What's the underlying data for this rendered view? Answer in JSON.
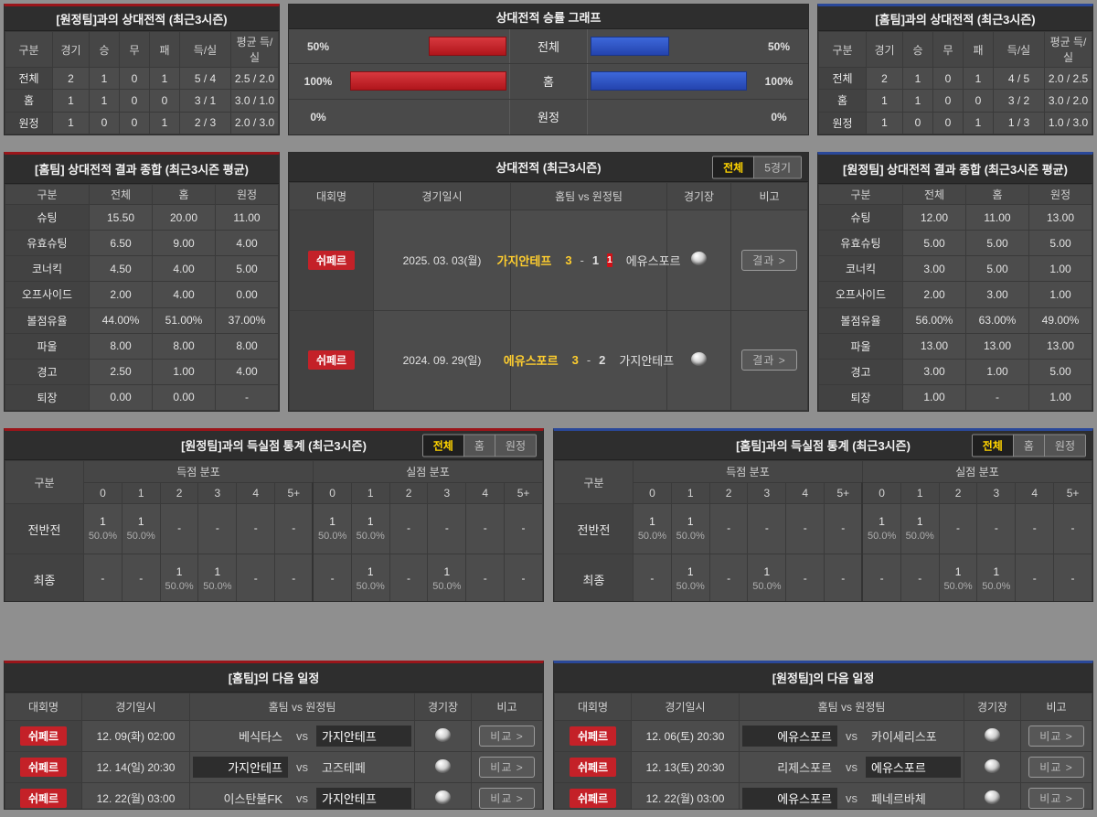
{
  "colors": {
    "red_accent": "#9a151a",
    "blue_accent": "#2a4899",
    "badge_red": "#c42128",
    "bar_red": "#c1272d",
    "bar_blue": "#2b50c8",
    "active_yellow": "#ffd400",
    "winner_yellow": "#ffce2e"
  },
  "top_left": {
    "title": "[원정팀]과의 상대전적 (최근3시즌)",
    "headers": [
      "구분",
      "경기",
      "승",
      "무",
      "패",
      "득/실",
      "평균 득/실"
    ],
    "rows": [
      [
        "전체",
        "2",
        "1",
        "0",
        "1",
        "5 / 4",
        "2.5 / 2.0"
      ],
      [
        "홈",
        "1",
        "1",
        "0",
        "0",
        "3 / 1",
        "3.0 / 1.0"
      ],
      [
        "원정",
        "1",
        "0",
        "0",
        "1",
        "2 / 3",
        "2.0 / 3.0"
      ]
    ]
  },
  "graph": {
    "title": "상대전적 승률 그래프",
    "rows": [
      {
        "left_label": "50%",
        "left_bar": "50%",
        "label": "전체",
        "right_bar": "50%",
        "right_label": "50%"
      },
      {
        "left_label": "100%",
        "left_bar": "100%",
        "label": "홈",
        "right_bar": "100%",
        "right_label": "100%"
      },
      {
        "left_label": "0%",
        "left_bar": "0%",
        "label": "원정",
        "right_bar": "0%",
        "right_label": "0%"
      }
    ]
  },
  "top_right": {
    "title": "[홈팀]과의 상대전적 (최근3시즌)",
    "headers": [
      "구분",
      "경기",
      "승",
      "무",
      "패",
      "득/실",
      "평균 득/실"
    ],
    "rows": [
      [
        "전체",
        "2",
        "1",
        "0",
        "1",
        "4 / 5",
        "2.0 / 2.5"
      ],
      [
        "홈",
        "1",
        "1",
        "0",
        "0",
        "3 / 2",
        "3.0 / 2.0"
      ],
      [
        "원정",
        "1",
        "0",
        "0",
        "1",
        "1 / 3",
        "1.0 / 3.0"
      ]
    ]
  },
  "summary_home": {
    "title": "[홈팀] 상대전적 결과 종합 (최근3시즌 평균)",
    "headers": [
      "구분",
      "전체",
      "홈",
      "원정"
    ],
    "rows": [
      [
        "슈팅",
        "15.50",
        "20.00",
        "11.00"
      ],
      [
        "유효슈팅",
        "6.50",
        "9.00",
        "4.00"
      ],
      [
        "코너킥",
        "4.50",
        "4.00",
        "5.00"
      ],
      [
        "오프사이드",
        "2.00",
        "4.00",
        "0.00"
      ],
      [
        "볼점유율",
        "44.00%",
        "51.00%",
        "37.00%"
      ],
      [
        "파울",
        "8.00",
        "8.00",
        "8.00"
      ],
      [
        "경고",
        "2.50",
        "1.00",
        "4.00"
      ],
      [
        "퇴장",
        "0.00",
        "0.00",
        "-"
      ]
    ]
  },
  "h2h": {
    "title": "상대전적 (최근3시즌)",
    "toggles": [
      {
        "label": "전체",
        "active": true
      },
      {
        "label": "5경기",
        "active": false
      }
    ],
    "headers": [
      "대회명",
      "경기일시",
      "홈팀 vs 원정팀",
      "경기장",
      "비고"
    ],
    "rows": [
      {
        "league": "쉬페르",
        "date": "2025. 03. 03(월)",
        "home": "가지안테프",
        "home_win": true,
        "home_score": "3",
        "dash": "-",
        "away_score": "1",
        "redcard": "1",
        "away": "에유스포르",
        "away_win": false,
        "btn": "결과 >"
      },
      {
        "league": "쉬페르",
        "date": "2024. 09. 29(일)",
        "home": "에유스포르",
        "home_win": true,
        "home_score": "3",
        "dash": "-",
        "away_score": "2",
        "away": "가지안테프",
        "away_win": false,
        "btn": "결과 >"
      }
    ]
  },
  "summary_away": {
    "title": "[원정팀] 상대전적 결과 종합 (최근3시즌 평균)",
    "headers": [
      "구분",
      "전체",
      "홈",
      "원정"
    ],
    "rows": [
      [
        "슈팅",
        "12.00",
        "11.00",
        "13.00"
      ],
      [
        "유효슈팅",
        "5.00",
        "5.00",
        "5.00"
      ],
      [
        "코너킥",
        "3.00",
        "5.00",
        "1.00"
      ],
      [
        "오프사이드",
        "2.00",
        "3.00",
        "1.00"
      ],
      [
        "볼점유율",
        "56.00%",
        "63.00%",
        "49.00%"
      ],
      [
        "파울",
        "13.00",
        "13.00",
        "13.00"
      ],
      [
        "경고",
        "3.00",
        "1.00",
        "5.00"
      ],
      [
        "퇴장",
        "1.00",
        "-",
        "1.00"
      ]
    ]
  },
  "dist_left": {
    "title": "[원정팀]과의 득실점 통계 (최근3시즌)",
    "toggles": [
      {
        "label": "전체",
        "active": true
      },
      {
        "label": "홈",
        "active": false
      },
      {
        "label": "원정",
        "active": false
      }
    ],
    "col_label": "구분",
    "groups": [
      "득점 분포",
      "실점 분포"
    ],
    "nums12": [
      "0",
      "1",
      "2",
      "3",
      "4",
      "5+",
      "0",
      "1",
      "2",
      "3",
      "4",
      "5+"
    ],
    "rows": [
      {
        "label": "전반전",
        "cells": [
          {
            "top": "1",
            "bottom": "50.0%"
          },
          {
            "top": "1",
            "bottom": "50.0%"
          },
          {
            "top": "-",
            "bottom": ""
          },
          {
            "top": "-",
            "bottom": ""
          },
          {
            "top": "-",
            "bottom": ""
          },
          {
            "top": "-",
            "bottom": ""
          },
          {
            "top": "1",
            "bottom": "50.0%"
          },
          {
            "top": "1",
            "bottom": "50.0%"
          },
          {
            "top": "-",
            "bottom": ""
          },
          {
            "top": "-",
            "bottom": ""
          },
          {
            "top": "-",
            "bottom": ""
          },
          {
            "top": "-",
            "bottom": ""
          }
        ]
      },
      {
        "label": "최종",
        "cells": [
          {
            "top": "-",
            "bottom": ""
          },
          {
            "top": "-",
            "bottom": ""
          },
          {
            "top": "1",
            "bottom": "50.0%"
          },
          {
            "top": "1",
            "bottom": "50.0%"
          },
          {
            "top": "-",
            "bottom": ""
          },
          {
            "top": "-",
            "bottom": ""
          },
          {
            "top": "-",
            "bottom": ""
          },
          {
            "top": "1",
            "bottom": "50.0%"
          },
          {
            "top": "-",
            "bottom": ""
          },
          {
            "top": "1",
            "bottom": "50.0%"
          },
          {
            "top": "-",
            "bottom": ""
          },
          {
            "top": "-",
            "bottom": ""
          }
        ]
      }
    ]
  },
  "dist_right": {
    "title": "[홈팀]과의 득실점 통계 (최근3시즌)",
    "toggles": [
      {
        "label": "전체",
        "active": true
      },
      {
        "label": "홈",
        "active": false
      },
      {
        "label": "원정",
        "active": false
      }
    ],
    "col_label": "구분",
    "groups": [
      "득점 분포",
      "실점 분포"
    ],
    "nums12": [
      "0",
      "1",
      "2",
      "3",
      "4",
      "5+",
      "0",
      "1",
      "2",
      "3",
      "4",
      "5+"
    ],
    "rows": [
      {
        "label": "전반전",
        "cells": [
          {
            "top": "1",
            "bottom": "50.0%"
          },
          {
            "top": "1",
            "bottom": "50.0%"
          },
          {
            "top": "-",
            "bottom": ""
          },
          {
            "top": "-",
            "bottom": ""
          },
          {
            "top": "-",
            "bottom": ""
          },
          {
            "top": "-",
            "bottom": ""
          },
          {
            "top": "1",
            "bottom": "50.0%"
          },
          {
            "top": "1",
            "bottom": "50.0%"
          },
          {
            "top": "-",
            "bottom": ""
          },
          {
            "top": "-",
            "bottom": ""
          },
          {
            "top": "-",
            "bottom": ""
          },
          {
            "top": "-",
            "bottom": ""
          }
        ]
      },
      {
        "label": "최종",
        "cells": [
          {
            "top": "-",
            "bottom": ""
          },
          {
            "top": "1",
            "bottom": "50.0%"
          },
          {
            "top": "-",
            "bottom": ""
          },
          {
            "top": "1",
            "bottom": "50.0%"
          },
          {
            "top": "-",
            "bottom": ""
          },
          {
            "top": "-",
            "bottom": ""
          },
          {
            "top": "-",
            "bottom": ""
          },
          {
            "top": "-",
            "bottom": ""
          },
          {
            "top": "1",
            "bottom": "50.0%"
          },
          {
            "top": "1",
            "bottom": "50.0%"
          },
          {
            "top": "-",
            "bottom": ""
          },
          {
            "top": "-",
            "bottom": ""
          }
        ]
      }
    ]
  },
  "sched_home": {
    "title": "[홈팀]의 다음 일정",
    "headers": [
      "대회명",
      "경기일시",
      "홈팀 vs 원정팀",
      "경기장",
      "비고"
    ],
    "rows": [
      {
        "league": "쉬페르",
        "date": "12. 09(화) 02:00",
        "home": "베식타스",
        "home_hl": false,
        "vs": "vs",
        "away": "가지안테프",
        "away_hl": true,
        "btn": "비교 >"
      },
      {
        "league": "쉬페르",
        "date": "12. 14(일) 20:30",
        "home": "가지안테프",
        "home_hl": true,
        "vs": "vs",
        "away": "고즈테페",
        "away_hl": false,
        "btn": "비교 >"
      },
      {
        "league": "쉬페르",
        "date": "12. 22(월) 03:00",
        "home": "이스탄불FK",
        "home_hl": false,
        "vs": "vs",
        "away": "가지안테프",
        "away_hl": true,
        "btn": "비교 >"
      }
    ]
  },
  "sched_away": {
    "title": "[원정팀]의 다음 일정",
    "headers": [
      "대회명",
      "경기일시",
      "홈팀 vs 원정팀",
      "경기장",
      "비고"
    ],
    "rows": [
      {
        "league": "쉬페르",
        "date": "12. 06(토) 20:30",
        "home": "에유스포르",
        "home_hl": true,
        "vs": "vs",
        "away": "카이세리스포",
        "away_hl": false,
        "btn": "비교 >"
      },
      {
        "league": "쉬페르",
        "date": "12. 13(토) 20:30",
        "home": "리제스포르",
        "home_hl": false,
        "vs": "vs",
        "away": "에유스포르",
        "away_hl": true,
        "btn": "비교 >"
      },
      {
        "league": "쉬페르",
        "date": "12. 22(월) 03:00",
        "home": "에유스포르",
        "home_hl": true,
        "vs": "vs",
        "away": "페네르바체",
        "away_hl": false,
        "btn": "비교 >"
      }
    ]
  }
}
